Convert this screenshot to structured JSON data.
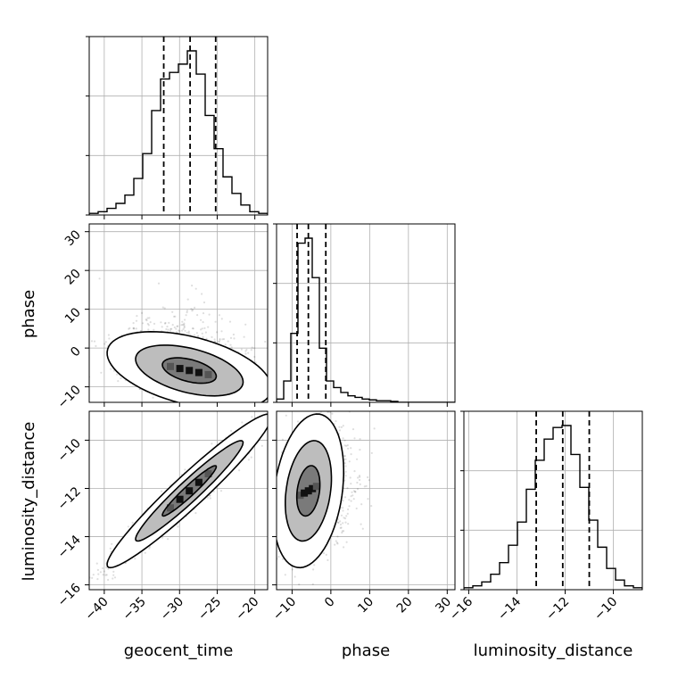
{
  "chart_data": {
    "type": "corner",
    "parameters": [
      "geocent_time",
      "phase",
      "luminosity_distance"
    ],
    "grid": true,
    "ranges": {
      "geocent_time": [
        -42.0,
        -18.3
      ],
      "phase": [
        -14.0,
        32.0
      ],
      "luminosity_distance": [
        -16.2,
        -8.8
      ]
    },
    "ticks": {
      "geocent_time": [
        -40,
        -35,
        -30,
        -25,
        -20
      ],
      "phase": [
        -10,
        0,
        10,
        20,
        30
      ],
      "luminosity_distance": [
        -16,
        -14,
        -12,
        -10
      ]
    },
    "tick_labels": {
      "geocent_time": [
        "−40",
        "−35",
        "−30",
        "−25",
        "−20"
      ],
      "phase": [
        "−10",
        "0",
        "10",
        "20",
        "30"
      ],
      "luminosity_distance": [
        "−16",
        "−14",
        "−12",
        "−10"
      ]
    },
    "quantiles": {
      "geocent_time": [
        -32.1,
        -28.6,
        -25.2
      ],
      "phase": [
        -8.7,
        -5.8,
        -1.3
      ],
      "luminosity_distance": [
        -13.2,
        -12.1,
        -11.0
      ]
    },
    "histograms": {
      "geocent_time": {
        "edges_range": [
          -42.0,
          -18.3
        ],
        "bins": 20,
        "heights": [
          0.01,
          0.02,
          0.04,
          0.07,
          0.12,
          0.22,
          0.37,
          0.63,
          0.82,
          0.86,
          0.91,
          0.99,
          0.85,
          0.6,
          0.4,
          0.23,
          0.13,
          0.06,
          0.02,
          0.01
        ]
      },
      "phase": {
        "edges_range": [
          -14.0,
          32.0
        ],
        "bins": 25,
        "heights": [
          0.02,
          0.13,
          0.42,
          0.97,
          1.0,
          0.76,
          0.33,
          0.13,
          0.09,
          0.06,
          0.04,
          0.03,
          0.02,
          0.015,
          0.01,
          0.01,
          0.006,
          0.0,
          0.0,
          0.0,
          0.0,
          0.0,
          0.0,
          0.0,
          0.0
        ]
      },
      "luminosity_distance": {
        "edges_range": [
          -16.2,
          -8.8
        ],
        "bins": 20,
        "heights": [
          0.01,
          0.02,
          0.04,
          0.08,
          0.14,
          0.23,
          0.35,
          0.52,
          0.67,
          0.78,
          0.84,
          0.85,
          0.7,
          0.53,
          0.36,
          0.22,
          0.11,
          0.05,
          0.02,
          0.01
        ]
      }
    },
    "joint": [
      {
        "x": "geocent_time",
        "y": "phase",
        "center": [
          -28.7,
          -5.8
        ],
        "sd": [
          3.6,
          3.3
        ],
        "rho": -0.45,
        "tail": 0.0,
        "levels": [
          0.39,
          0.86,
          0.99
        ]
      },
      {
        "x": "geocent_time",
        "y": "luminosity_distance",
        "center": [
          -28.7,
          -12.1
        ],
        "sd": [
          3.6,
          1.05
        ],
        "rho": 0.96,
        "tail": 0.0,
        "levels": [
          0.39,
          0.86,
          0.99
        ]
      },
      {
        "x": "phase",
        "y": "luminosity_distance",
        "center": [
          -5.8,
          -12.1
        ],
        "sd": [
          3.0,
          1.05
        ],
        "rho": 0.25,
        "tail": 4.0,
        "levels": [
          0.39,
          0.86,
          0.99
        ]
      }
    ],
    "colors": {
      "line": "#000000",
      "grid": "#b0b0b0",
      "points": "#000000",
      "background": "#ffffff"
    }
  }
}
